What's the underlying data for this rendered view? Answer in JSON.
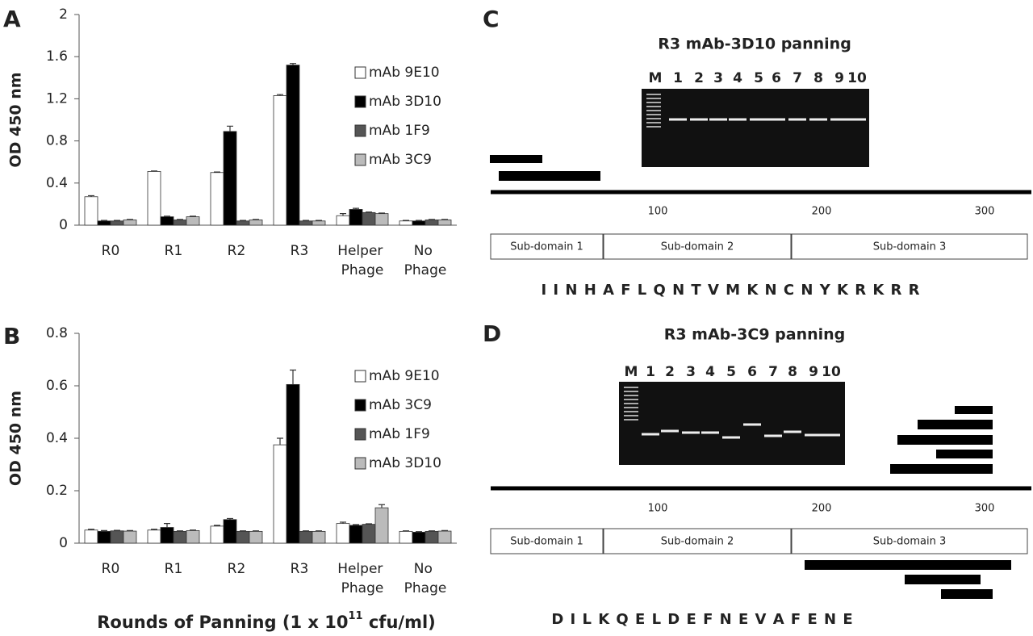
{
  "chart_data": [
    {
      "type": "bar",
      "panel_label": "A",
      "y_label": "OD 450 nm",
      "categories": [
        "R0",
        "R1",
        "R2",
        "R3",
        "Helper Phage",
        "No Phage"
      ],
      "series": [
        {
          "name": "mAb 9E10",
          "color": "#ffffff",
          "values": [
            0.27,
            0.51,
            0.5,
            1.23,
            0.09,
            0.04
          ],
          "errors": [
            0.01,
            0.005,
            0.005,
            0.01,
            0.02,
            0.005
          ]
        },
        {
          "name": "mAb 3D10",
          "color": "#000000",
          "values": [
            0.04,
            0.08,
            0.89,
            1.52,
            0.15,
            0.04
          ],
          "errors": [
            0.005,
            0.005,
            0.05,
            0.015,
            0.01,
            0.005
          ]
        },
        {
          "name": "mAb 1F9",
          "color": "#555555",
          "values": [
            0.04,
            0.05,
            0.04,
            0.04,
            0.12,
            0.05
          ],
          "errors": [
            0.005,
            0.005,
            0.005,
            0.005,
            0.005,
            0.005
          ]
        },
        {
          "name": "mAb 3C9",
          "color": "#bbbbbb",
          "values": [
            0.05,
            0.08,
            0.05,
            0.04,
            0.11,
            0.05
          ],
          "errors": [
            0.005,
            0.005,
            0.005,
            0.005,
            0.005,
            0.005
          ]
        }
      ],
      "ylim": [
        0,
        2
      ],
      "yticks": [
        0,
        0.4,
        0.8,
        1.2,
        1.6,
        2
      ],
      "legend": "top-right"
    },
    {
      "type": "bar",
      "panel_label": "B",
      "y_label": "OD 450 nm",
      "x_label": "Rounds of Panning (1 x 10",
      "x_label_sup": "11",
      "x_label_end": " cfu/ml)",
      "categories": [
        "R0",
        "R1",
        "R2",
        "R3",
        "Helper Phage",
        "No Phage"
      ],
      "series": [
        {
          "name": "mAb 9E10",
          "color": "#ffffff",
          "values": [
            0.05,
            0.05,
            0.065,
            0.375,
            0.075,
            0.045
          ],
          "errors": [
            0.003,
            0.003,
            0.003,
            0.025,
            0.005,
            0.002
          ]
        },
        {
          "name": "mAb 3C9",
          "color": "#000000",
          "values": [
            0.045,
            0.06,
            0.09,
            0.605,
            0.068,
            0.042
          ],
          "errors": [
            0.003,
            0.015,
            0.004,
            0.055,
            0.003,
            0.002
          ]
        },
        {
          "name": "mAb 1F9",
          "color": "#555555",
          "values": [
            0.047,
            0.045,
            0.045,
            0.045,
            0.072,
            0.045
          ],
          "errors": [
            0.002,
            0.002,
            0.002,
            0.002,
            0.002,
            0.002
          ]
        },
        {
          "name": "mAb 3D10",
          "color": "#bbbbbb",
          "values": [
            0.046,
            0.048,
            0.045,
            0.045,
            0.135,
            0.046
          ],
          "errors": [
            0.002,
            0.002,
            0.002,
            0.002,
            0.012,
            0.002
          ]
        }
      ],
      "ylim": [
        0,
        0.8
      ],
      "yticks": [
        0,
        0.2,
        0.4,
        0.6,
        0.8
      ],
      "legend": "top-right"
    }
  ],
  "panels": [
    {
      "label": "C",
      "title": "R3 mAb-3D10 panning",
      "gel_lanes": [
        "M",
        "1",
        "2",
        "3",
        "4",
        "5",
        "6",
        "7",
        "8",
        "9",
        "10"
      ],
      "axis_ticks": [
        "100",
        "200",
        "300"
      ],
      "domains": [
        "Sub-domain 1",
        "Sub-domain 2",
        "Sub-domain 3"
      ],
      "sequence": "I I N H A F L Q N T V M K N C N Y K R K R R"
    },
    {
      "label": "D",
      "title": "R3 mAb-3C9 panning",
      "gel_lanes": [
        "M",
        "1",
        "2",
        "3",
        "4",
        "5",
        "6",
        "7",
        "8",
        "9",
        "10"
      ],
      "axis_ticks": [
        "100",
        "200",
        "300"
      ],
      "domains": [
        "Sub-domain 1",
        "Sub-domain 2",
        "Sub-domain 3"
      ],
      "sequence": "D I L K Q E L D E F N E V A F E N E"
    }
  ]
}
